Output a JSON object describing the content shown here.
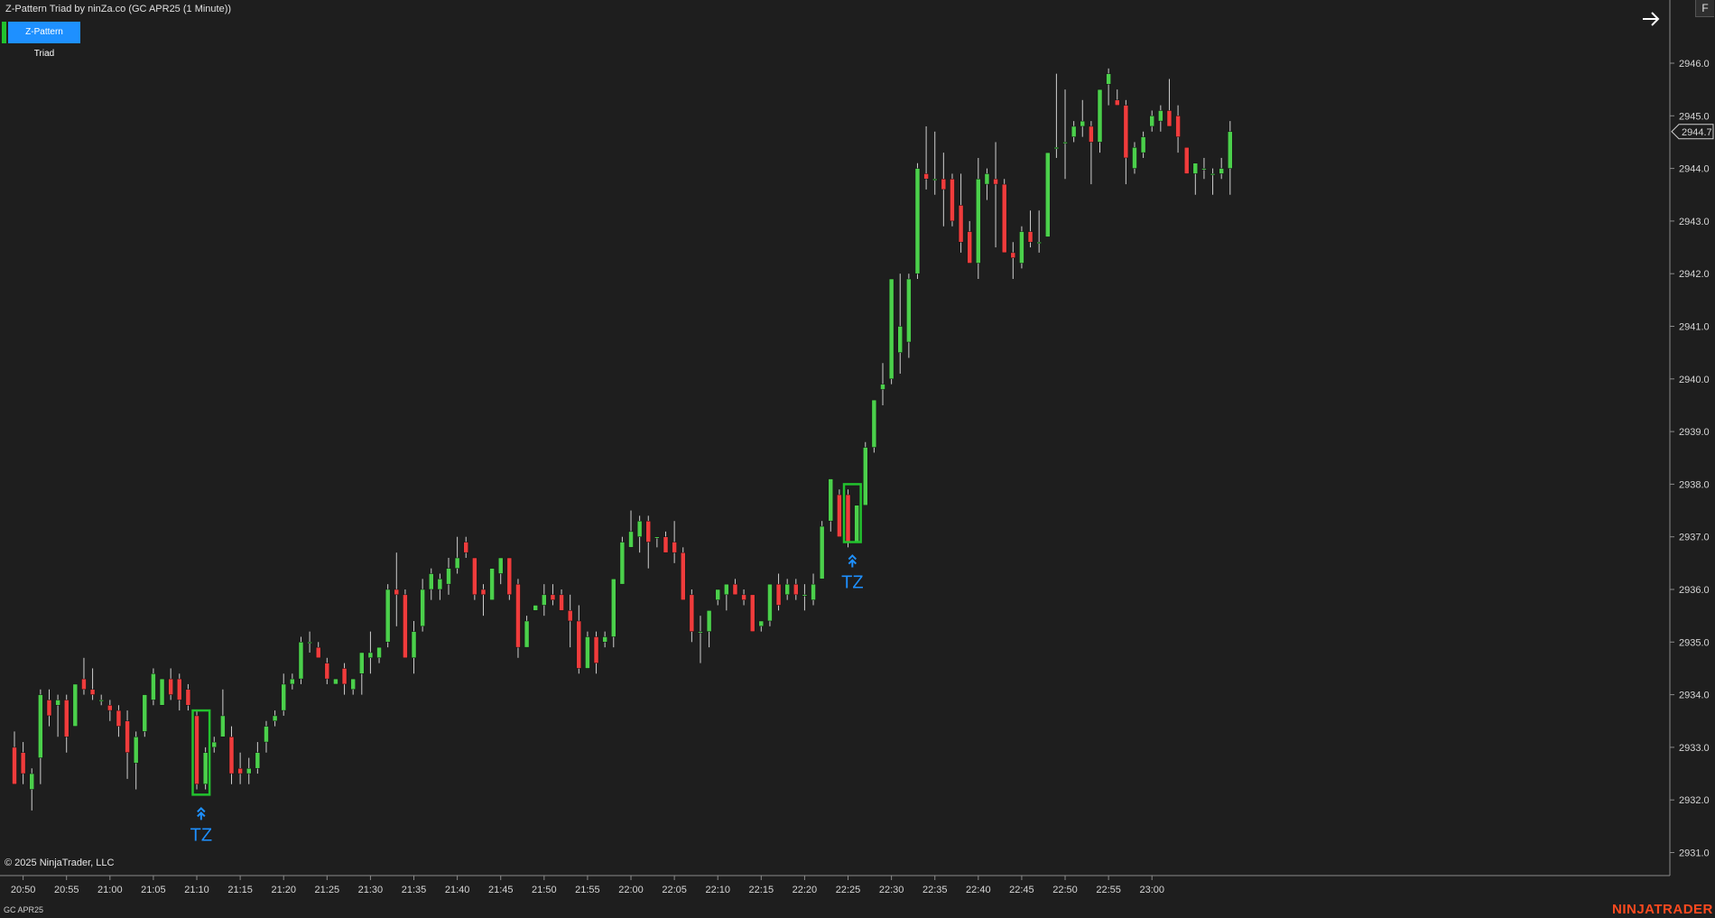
{
  "title": "Z-Pattern Triad by ninZa.co (GC APR25 (1 Minute))",
  "indicator": {
    "label": "Z-Pattern Triad",
    "bar_color": "#22c32e",
    "label_bg": "#1e90ff"
  },
  "toolbar": {
    "arrow_icon": "arrow-right-icon",
    "f_label": "F"
  },
  "footer": {
    "copyright": "© 2025 NinjaTrader, LLC",
    "instrument": "GC APR25",
    "logo": "NINJATRADER"
  },
  "colors": {
    "background": "#1e1e1e",
    "up": "#4bd04b",
    "down": "#f03c3c",
    "signal": "#1e90ff",
    "zone": "#22c32e"
  },
  "chart_data": {
    "type": "candlestick",
    "instrument": "GC APR25",
    "interval": "1 Minute",
    "current_price": "2944.7",
    "ylim": [
      2930.8,
      2946.8
    ],
    "y_ticks": [
      {
        "v": 2946,
        "label": "2946.0"
      },
      {
        "v": 2945,
        "label": "2945.0"
      },
      {
        "v": 2944,
        "label": "2944.0"
      },
      {
        "v": 2943,
        "label": "2943.0"
      },
      {
        "v": 2942,
        "label": "2942.0"
      },
      {
        "v": 2941,
        "label": "2941.0"
      },
      {
        "v": 2940,
        "label": "2940.0"
      },
      {
        "v": 2939,
        "label": "2939.0"
      },
      {
        "v": 2938,
        "label": "2938.0"
      },
      {
        "v": 2937,
        "label": "2937.0"
      },
      {
        "v": 2936,
        "label": "2936.0"
      },
      {
        "v": 2935,
        "label": "2935.0"
      },
      {
        "v": 2934,
        "label": "2934.0"
      },
      {
        "v": 2933,
        "label": "2933.0"
      },
      {
        "v": 2932,
        "label": "2932.0"
      },
      {
        "v": 2931,
        "label": "2931.0"
      }
    ],
    "x_ticks": [
      "20:50",
      "20:55",
      "21:00",
      "21:05",
      "21:10",
      "21:15",
      "21:20",
      "21:25",
      "21:30",
      "21:35",
      "21:40",
      "21:45",
      "21:50",
      "21:55",
      "22:00",
      "22:05",
      "22:10",
      "22:15",
      "22:20",
      "22:25",
      "22:30",
      "22:35",
      "22:40",
      "22:45",
      "22:50",
      "22:55",
      "23:00"
    ],
    "first_bar": "20:49",
    "bars": [
      {
        "o": 2933.0,
        "h": 2933.3,
        "l": 2932.3,
        "c": 2932.3
      },
      {
        "o": 2932.9,
        "h": 2933.1,
        "l": 2932.3,
        "c": 2932.5
      },
      {
        "o": 2932.2,
        "h": 2932.6,
        "l": 2931.8,
        "c": 2932.5
      },
      {
        "o": 2932.8,
        "h": 2934.1,
        "l": 2932.3,
        "c": 2934.0
      },
      {
        "o": 2933.9,
        "h": 2934.1,
        "l": 2933.4,
        "c": 2933.6
      },
      {
        "o": 2933.8,
        "h": 2934.0,
        "l": 2933.2,
        "c": 2933.9
      },
      {
        "o": 2933.9,
        "h": 2934.0,
        "l": 2932.9,
        "c": 2933.2
      },
      {
        "o": 2933.4,
        "h": 2934.2,
        "l": 2933.4,
        "c": 2934.2
      },
      {
        "o": 2934.3,
        "h": 2934.7,
        "l": 2934.0,
        "c": 2934.1
      },
      {
        "o": 2934.1,
        "h": 2934.5,
        "l": 2933.9,
        "c": 2934.0
      },
      {
        "o": 2933.9,
        "h": 2934.0,
        "l": 2933.8,
        "c": 2933.9
      },
      {
        "o": 2933.8,
        "h": 2933.9,
        "l": 2933.5,
        "c": 2933.7
      },
      {
        "o": 2933.7,
        "h": 2933.8,
        "l": 2933.2,
        "c": 2933.4
      },
      {
        "o": 2933.5,
        "h": 2933.7,
        "l": 2932.4,
        "c": 2932.9
      },
      {
        "o": 2932.7,
        "h": 2933.3,
        "l": 2932.2,
        "c": 2933.2
      },
      {
        "o": 2933.3,
        "h": 2934.0,
        "l": 2933.2,
        "c": 2934.0
      },
      {
        "o": 2933.9,
        "h": 2934.5,
        "l": 2933.8,
        "c": 2934.4
      },
      {
        "o": 2933.8,
        "h": 2934.3,
        "l": 2933.8,
        "c": 2934.3
      },
      {
        "o": 2934.3,
        "h": 2934.5,
        "l": 2933.9,
        "c": 2934.0
      },
      {
        "o": 2934.3,
        "h": 2934.4,
        "l": 2933.7,
        "c": 2933.9
      },
      {
        "o": 2934.1,
        "h": 2934.2,
        "l": 2933.7,
        "c": 2933.8
      },
      {
        "o": 2933.6,
        "h": 2933.7,
        "l": 2932.2,
        "c": 2932.3
      },
      {
        "o": 2932.3,
        "h": 2933.0,
        "l": 2932.2,
        "c": 2932.9
      },
      {
        "o": 2933.0,
        "h": 2933.2,
        "l": 2932.9,
        "c": 2933.1
      },
      {
        "o": 2933.2,
        "h": 2934.1,
        "l": 2933.2,
        "c": 2933.6
      },
      {
        "o": 2933.2,
        "h": 2933.4,
        "l": 2932.3,
        "c": 2932.5
      },
      {
        "o": 2932.6,
        "h": 2932.9,
        "l": 2932.3,
        "c": 2932.5
      },
      {
        "o": 2932.5,
        "h": 2932.8,
        "l": 2932.3,
        "c": 2932.6
      },
      {
        "o": 2932.6,
        "h": 2933.1,
        "l": 2932.5,
        "c": 2932.9
      },
      {
        "o": 2933.1,
        "h": 2933.5,
        "l": 2932.9,
        "c": 2933.4
      },
      {
        "o": 2933.5,
        "h": 2933.7,
        "l": 2933.4,
        "c": 2933.6
      },
      {
        "o": 2933.7,
        "h": 2934.4,
        "l": 2933.6,
        "c": 2934.2
      },
      {
        "o": 2934.2,
        "h": 2934.4,
        "l": 2934.1,
        "c": 2934.3
      },
      {
        "o": 2934.3,
        "h": 2935.1,
        "l": 2934.2,
        "c": 2935.0
      },
      {
        "o": 2935.0,
        "h": 2935.2,
        "l": 2934.8,
        "c": 2935.0
      },
      {
        "o": 2934.9,
        "h": 2935.0,
        "l": 2934.7,
        "c": 2934.7
      },
      {
        "o": 2934.6,
        "h": 2934.7,
        "l": 2934.2,
        "c": 2934.3
      },
      {
        "o": 2934.2,
        "h": 2934.3,
        "l": 2934.2,
        "c": 2934.3
      },
      {
        "o": 2934.5,
        "h": 2934.6,
        "l": 2934.0,
        "c": 2934.2
      },
      {
        "o": 2934.1,
        "h": 2934.3,
        "l": 2934.0,
        "c": 2934.3
      },
      {
        "o": 2934.4,
        "h": 2934.8,
        "l": 2934.0,
        "c": 2934.8
      },
      {
        "o": 2934.7,
        "h": 2935.2,
        "l": 2934.4,
        "c": 2934.8
      },
      {
        "o": 2934.7,
        "h": 2934.9,
        "l": 2934.6,
        "c": 2934.9
      },
      {
        "o": 2935.0,
        "h": 2936.1,
        "l": 2934.9,
        "c": 2936.0
      },
      {
        "o": 2936.0,
        "h": 2936.7,
        "l": 2935.3,
        "c": 2935.9
      },
      {
        "o": 2935.9,
        "h": 2936.0,
        "l": 2934.7,
        "c": 2934.7
      },
      {
        "o": 2934.7,
        "h": 2935.4,
        "l": 2934.4,
        "c": 2935.2
      },
      {
        "o": 2935.3,
        "h": 2936.2,
        "l": 2935.2,
        "c": 2936.0
      },
      {
        "o": 2936.0,
        "h": 2936.4,
        "l": 2935.8,
        "c": 2936.3
      },
      {
        "o": 2936.0,
        "h": 2936.3,
        "l": 2935.8,
        "c": 2936.2
      },
      {
        "o": 2936.1,
        "h": 2936.6,
        "l": 2935.9,
        "c": 2936.4
      },
      {
        "o": 2936.4,
        "h": 2937.0,
        "l": 2936.3,
        "c": 2936.6
      },
      {
        "o": 2936.9,
        "h": 2937.0,
        "l": 2936.6,
        "c": 2936.7
      },
      {
        "o": 2936.6,
        "h": 2936.6,
        "l": 2935.8,
        "c": 2935.9
      },
      {
        "o": 2936.0,
        "h": 2936.1,
        "l": 2935.5,
        "c": 2935.9
      },
      {
        "o": 2935.8,
        "h": 2936.4,
        "l": 2935.8,
        "c": 2936.4
      },
      {
        "o": 2936.3,
        "h": 2936.6,
        "l": 2936.1,
        "c": 2936.6
      },
      {
        "o": 2936.6,
        "h": 2936.6,
        "l": 2935.8,
        "c": 2935.9
      },
      {
        "o": 2936.1,
        "h": 2936.2,
        "l": 2934.7,
        "c": 2934.9
      },
      {
        "o": 2934.9,
        "h": 2935.5,
        "l": 2934.9,
        "c": 2935.4
      },
      {
        "o": 2935.6,
        "h": 2935.7,
        "l": 2935.6,
        "c": 2935.7
      },
      {
        "o": 2935.7,
        "h": 2936.1,
        "l": 2935.5,
        "c": 2935.9
      },
      {
        "o": 2935.9,
        "h": 2936.1,
        "l": 2935.7,
        "c": 2935.8
      },
      {
        "o": 2935.9,
        "h": 2936.0,
        "l": 2935.6,
        "c": 2935.6
      },
      {
        "o": 2935.6,
        "h": 2935.9,
        "l": 2934.9,
        "c": 2935.4
      },
      {
        "o": 2935.4,
        "h": 2935.7,
        "l": 2934.4,
        "c": 2934.5
      },
      {
        "o": 2934.5,
        "h": 2935.2,
        "l": 2934.5,
        "c": 2935.1
      },
      {
        "o": 2935.1,
        "h": 2935.2,
        "l": 2934.4,
        "c": 2934.6
      },
      {
        "o": 2935.0,
        "h": 2935.2,
        "l": 2934.9,
        "c": 2935.1
      },
      {
        "o": 2935.1,
        "h": 2936.2,
        "l": 2934.9,
        "c": 2936.2
      },
      {
        "o": 2936.1,
        "h": 2937.0,
        "l": 2936.1,
        "c": 2936.9
      },
      {
        "o": 2936.8,
        "h": 2937.5,
        "l": 2936.8,
        "c": 2937.1
      },
      {
        "o": 2937.0,
        "h": 2937.4,
        "l": 2936.7,
        "c": 2937.3
      },
      {
        "o": 2937.3,
        "h": 2937.4,
        "l": 2936.4,
        "c": 2936.9
      },
      {
        "o": 2937.0,
        "h": 2937.0,
        "l": 2936.8,
        "c": 2937.0
      },
      {
        "o": 2937.0,
        "h": 2937.1,
        "l": 2936.7,
        "c": 2936.7
      },
      {
        "o": 2936.9,
        "h": 2937.3,
        "l": 2936.5,
        "c": 2936.7
      },
      {
        "o": 2936.7,
        "h": 2936.8,
        "l": 2935.8,
        "c": 2935.8
      },
      {
        "o": 2935.9,
        "h": 2936.0,
        "l": 2935.0,
        "c": 2935.2
      },
      {
        "o": 2935.2,
        "h": 2935.5,
        "l": 2934.6,
        "c": 2935.2
      },
      {
        "o": 2935.2,
        "h": 2935.6,
        "l": 2934.9,
        "c": 2935.6
      },
      {
        "o": 2935.8,
        "h": 2936.0,
        "l": 2935.7,
        "c": 2936.0
      },
      {
        "o": 2935.9,
        "h": 2936.1,
        "l": 2935.6,
        "c": 2936.1
      },
      {
        "o": 2936.1,
        "h": 2936.2,
        "l": 2935.9,
        "c": 2935.9
      },
      {
        "o": 2935.9,
        "h": 2936.0,
        "l": 2935.7,
        "c": 2935.8
      },
      {
        "o": 2935.9,
        "h": 2935.9,
        "l": 2935.2,
        "c": 2935.2
      },
      {
        "o": 2935.3,
        "h": 2935.4,
        "l": 2935.2,
        "c": 2935.4
      },
      {
        "o": 2935.4,
        "h": 2936.1,
        "l": 2935.3,
        "c": 2936.1
      },
      {
        "o": 2936.1,
        "h": 2936.3,
        "l": 2935.6,
        "c": 2935.7
      },
      {
        "o": 2935.9,
        "h": 2936.2,
        "l": 2935.8,
        "c": 2936.1
      },
      {
        "o": 2936.1,
        "h": 2936.2,
        "l": 2935.8,
        "c": 2935.9
      },
      {
        "o": 2935.9,
        "h": 2936.1,
        "l": 2935.6,
        "c": 2935.9
      },
      {
        "o": 2935.8,
        "h": 2936.3,
        "l": 2935.7,
        "c": 2936.1
      },
      {
        "o": 2936.2,
        "h": 2937.3,
        "l": 2936.2,
        "c": 2937.2
      },
      {
        "o": 2937.3,
        "h": 2938.1,
        "l": 2937.1,
        "c": 2938.1
      },
      {
        "o": 2937.8,
        "h": 2937.9,
        "l": 2937.0,
        "c": 2937.0
      },
      {
        "o": 2937.8,
        "h": 2937.9,
        "l": 2936.8,
        "c": 2936.9
      },
      {
        "o": 2936.9,
        "h": 2937.6,
        "l": 2936.9,
        "c": 2937.6
      },
      {
        "o": 2937.6,
        "h": 2938.8,
        "l": 2937.6,
        "c": 2938.7
      },
      {
        "o": 2938.7,
        "h": 2939.6,
        "l": 2938.6,
        "c": 2939.6
      },
      {
        "o": 2939.8,
        "h": 2940.3,
        "l": 2939.5,
        "c": 2939.9
      },
      {
        "o": 2940.0,
        "h": 2941.9,
        "l": 2939.9,
        "c": 2941.9
      },
      {
        "o": 2940.5,
        "h": 2942.0,
        "l": 2940.1,
        "c": 2941.0
      },
      {
        "o": 2940.7,
        "h": 2942.0,
        "l": 2940.4,
        "c": 2941.9
      },
      {
        "o": 2942.0,
        "h": 2944.1,
        "l": 2941.9,
        "c": 2944.0
      },
      {
        "o": 2943.9,
        "h": 2944.8,
        "l": 2943.6,
        "c": 2943.8
      },
      {
        "o": 2943.8,
        "h": 2944.7,
        "l": 2943.5,
        "c": 2943.8
      },
      {
        "o": 2943.8,
        "h": 2944.3,
        "l": 2942.9,
        "c": 2943.6
      },
      {
        "o": 2943.8,
        "h": 2943.9,
        "l": 2942.9,
        "c": 2943.0
      },
      {
        "o": 2943.3,
        "h": 2943.9,
        "l": 2942.4,
        "c": 2942.6
      },
      {
        "o": 2942.8,
        "h": 2943.0,
        "l": 2942.2,
        "c": 2942.2
      },
      {
        "o": 2942.2,
        "h": 2944.2,
        "l": 2941.9,
        "c": 2943.8
      },
      {
        "o": 2943.7,
        "h": 2944.0,
        "l": 2943.4,
        "c": 2943.9
      },
      {
        "o": 2943.8,
        "h": 2944.5,
        "l": 2942.5,
        "c": 2943.7
      },
      {
        "o": 2943.7,
        "h": 2943.8,
        "l": 2942.4,
        "c": 2942.4
      },
      {
        "o": 2942.4,
        "h": 2942.6,
        "l": 2941.9,
        "c": 2942.3
      },
      {
        "o": 2942.2,
        "h": 2942.9,
        "l": 2942.1,
        "c": 2942.8
      },
      {
        "o": 2942.8,
        "h": 2943.2,
        "l": 2942.5,
        "c": 2942.6
      },
      {
        "o": 2942.6,
        "h": 2943.2,
        "l": 2942.4,
        "c": 2942.6
      },
      {
        "o": 2942.7,
        "h": 2944.3,
        "l": 2942.7,
        "c": 2944.3
      },
      {
        "o": 2944.4,
        "h": 2945.8,
        "l": 2944.2,
        "c": 2944.4
      },
      {
        "o": 2944.5,
        "h": 2945.5,
        "l": 2943.8,
        "c": 2944.5
      },
      {
        "o": 2944.6,
        "h": 2944.9,
        "l": 2944.5,
        "c": 2944.8
      },
      {
        "o": 2944.8,
        "h": 2945.3,
        "l": 2944.6,
        "c": 2944.9
      },
      {
        "o": 2944.8,
        "h": 2944.9,
        "l": 2943.7,
        "c": 2944.5
      },
      {
        "o": 2944.5,
        "h": 2945.5,
        "l": 2944.3,
        "c": 2945.5
      },
      {
        "o": 2945.6,
        "h": 2945.9,
        "l": 2945.2,
        "c": 2945.8
      },
      {
        "o": 2945.3,
        "h": 2945.5,
        "l": 2945.2,
        "c": 2945.2
      },
      {
        "o": 2945.2,
        "h": 2945.3,
        "l": 2943.7,
        "c": 2944.2
      },
      {
        "o": 2944.0,
        "h": 2944.5,
        "l": 2943.9,
        "c": 2944.4
      },
      {
        "o": 2944.3,
        "h": 2944.7,
        "l": 2944.2,
        "c": 2944.6
      },
      {
        "o": 2944.8,
        "h": 2945.1,
        "l": 2944.7,
        "c": 2945.0
      },
      {
        "o": 2944.9,
        "h": 2945.2,
        "l": 2944.7,
        "c": 2945.1
      },
      {
        "o": 2945.1,
        "h": 2945.7,
        "l": 2944.8,
        "c": 2944.8
      },
      {
        "o": 2945.0,
        "h": 2945.2,
        "l": 2944.3,
        "c": 2944.6
      },
      {
        "o": 2944.4,
        "h": 2944.4,
        "l": 2943.9,
        "c": 2943.9
      },
      {
        "o": 2943.9,
        "h": 2944.1,
        "l": 2943.5,
        "c": 2944.1
      },
      {
        "o": 2944.0,
        "h": 2944.2,
        "l": 2943.8,
        "c": 2944.0
      },
      {
        "o": 2943.9,
        "h": 2944.0,
        "l": 2943.5,
        "c": 2943.9
      },
      {
        "o": 2943.9,
        "h": 2944.2,
        "l": 2943.8,
        "c": 2944.0
      },
      {
        "o": 2944.0,
        "h": 2944.9,
        "l": 2943.5,
        "c": 2944.7
      }
    ],
    "signals": [
      {
        "label": "TZ",
        "bar_from": 21,
        "bar_to": 22,
        "zone_low": 2932.1,
        "zone_high": 2933.7
      },
      {
        "label": "TZ",
        "bar_from": 96,
        "bar_to": 97,
        "zone_low": 2936.9,
        "zone_high": 2938.0
      }
    ]
  }
}
